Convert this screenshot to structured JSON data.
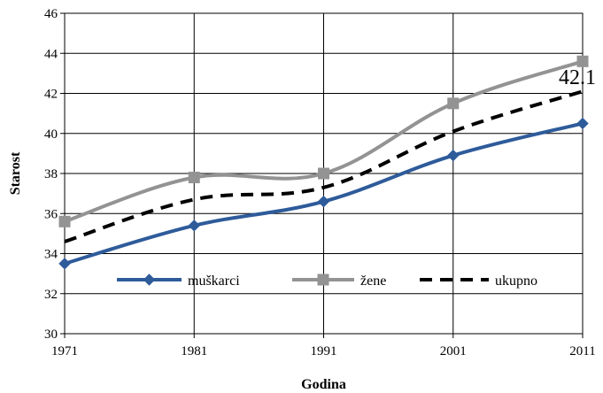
{
  "chart_data": {
    "type": "line",
    "title": "",
    "xlabel": "Godina",
    "ylabel": "Starost",
    "x": [
      1971,
      1981,
      1991,
      2001,
      2011
    ],
    "x_tick_labels": [
      "1971",
      "1981",
      "1991",
      "2001",
      "2011"
    ],
    "ylim": [
      30,
      46
    ],
    "y_ticks": [
      30,
      32,
      34,
      36,
      38,
      40,
      42,
      44,
      46
    ],
    "grid": true,
    "legend_position": "bottom-inside",
    "series": [
      {
        "name": "muškarci",
        "values": [
          33.5,
          35.4,
          36.6,
          38.9,
          40.5
        ],
        "color": "#2e5b9a",
        "marker": "diamond",
        "dash": "solid"
      },
      {
        "name": "žene",
        "values": [
          35.6,
          37.8,
          38.0,
          41.5,
          43.6
        ],
        "color": "#939393",
        "marker": "square",
        "dash": "solid"
      },
      {
        "name": "ukupno",
        "values": [
          34.6,
          36.7,
          37.3,
          40.1,
          42.1
        ],
        "color": "#000000",
        "marker": "none",
        "dash": "dashed"
      }
    ],
    "annotations": [
      {
        "text": "42.1",
        "x": 2011,
        "y": 42.1
      }
    ]
  }
}
